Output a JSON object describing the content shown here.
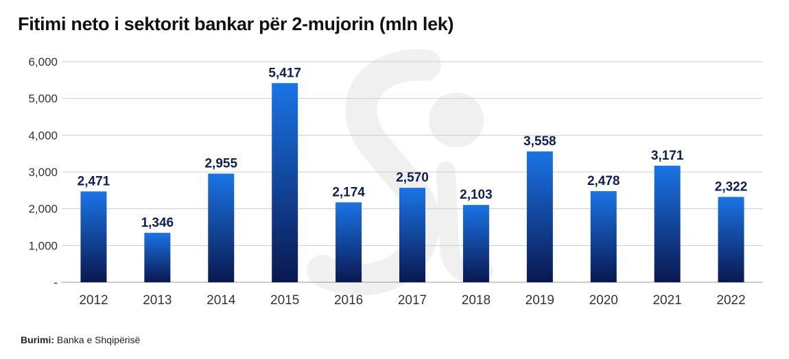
{
  "header": {
    "title": "Fitimi neto i sektorit bankar për 2-mujorin (mln lek)"
  },
  "footer": {
    "source_label": "Burimi:",
    "source_text": "Banka e Shqipërisë"
  },
  "chart_data": {
    "type": "bar",
    "title": "Fitimi neto i sektorit bankar për 2-mujorin (mln lek)",
    "xlabel": "",
    "ylabel": "",
    "categories": [
      "2012",
      "2013",
      "2014",
      "2015",
      "2016",
      "2017",
      "2018",
      "2019",
      "2020",
      "2021",
      "2022"
    ],
    "values": [
      2471,
      1346,
      2955,
      5417,
      2174,
      2570,
      2103,
      3558,
      2478,
      3171,
      2322
    ],
    "data_labels": [
      "2,471",
      "1,346",
      "2,955",
      "5,417",
      "2,174",
      "2,570",
      "2,103",
      "3,558",
      "2,478",
      "3,171",
      "2,322"
    ],
    "ylim": [
      0,
      6000
    ],
    "yticks": [
      0,
      1000,
      2000,
      3000,
      4000,
      5000,
      6000
    ],
    "ytick_labels": [
      "-",
      "1,000",
      "2,000",
      "3,000",
      "4,000",
      "5,000",
      "6,000"
    ],
    "grid": true,
    "legend": "none",
    "colors": {
      "bar_top": "#1a74e6",
      "bar_bottom": "#0a1850",
      "label": "#0d1e5a",
      "grid": "#cccccc"
    }
  }
}
